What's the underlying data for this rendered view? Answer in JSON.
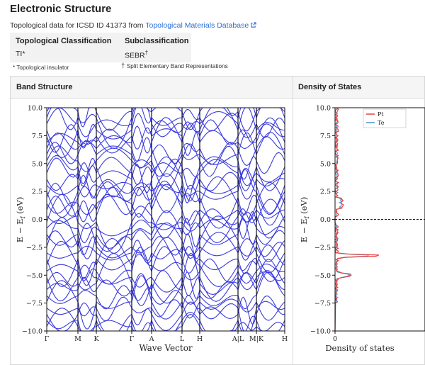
{
  "header": {
    "title": "Electronic Structure",
    "subline_prefix": "Topological data for ICSD ID 41373 from",
    "source_link": "Topological Materials Database"
  },
  "classification": {
    "col1_header": "Topological Classification",
    "col2_header": "Subclassification",
    "col1_value": "TI*",
    "col2_value": "SEBR",
    "col2_value_mark": "†",
    "footnote1": "* Topological insulator",
    "footnote2_mark": "†",
    "footnote2": "Split Elementary Band Representations"
  },
  "panels": {
    "band_title": "Band Structure",
    "dos_title": "Density of States"
  },
  "chart_data": [
    {
      "type": "line",
      "title": "",
      "xlabel": "Wave Vector",
      "ylabel": "E − E_f (eV)",
      "ylim": [
        -10,
        10
      ],
      "yticks": [
        "10.0",
        "7.5",
        "5.0",
        "2.5",
        "0.0",
        "−2.5",
        "−5.0",
        "−7.5",
        "−10.0"
      ],
      "kpoints": [
        "Γ",
        "M",
        "K",
        "Γ",
        "A",
        "L",
        "H",
        "A|L",
        "M|K",
        "H"
      ],
      "color": "#3a3adf",
      "bands_note": "many dispersive bands spanning -10 to 10 eV"
    },
    {
      "type": "line",
      "title": "",
      "xlabel": "Density of states",
      "ylabel": "E − E_f (eV)",
      "ylim": [
        -10,
        10
      ],
      "xticks": [
        "0"
      ],
      "series": [
        {
          "name": "Pt",
          "color": "#e8403a"
        },
        {
          "name": "Te",
          "color": "#4f8fc8"
        }
      ],
      "fermi_level": 0.0
    }
  ]
}
